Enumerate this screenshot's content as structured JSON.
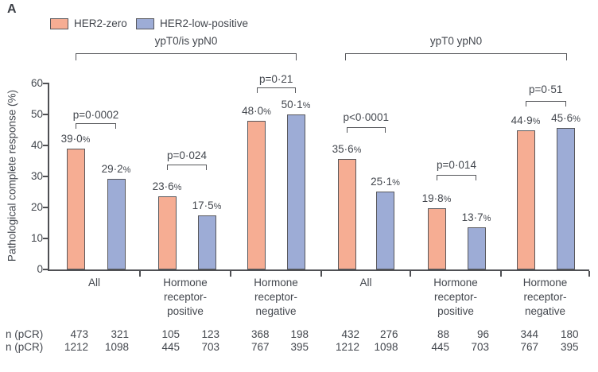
{
  "panel_label": "A",
  "chart_data": {
    "type": "bar",
    "title": "",
    "ylabel": "Pathological complete response (%)",
    "xlabel": "",
    "ylim": [
      0,
      60
    ],
    "yticks": [
      0,
      10,
      20,
      30,
      40,
      50,
      60
    ],
    "grid": false,
    "legend_position": "top-left",
    "legend": [
      {
        "name": "HER2-zero",
        "color": "#F6AD93"
      },
      {
        "name": "HER2-low-positive",
        "color": "#9DACD6"
      }
    ],
    "group_headers": [
      "ypT0/is ypN0",
      "ypT0 ypN0"
    ],
    "categories": [
      "All",
      "Hormone receptor-positive",
      "Hormone receptor-negative",
      "All",
      "Hormone receptor-positive",
      "Hormone receptor-negative"
    ],
    "category_lines": [
      [
        "All"
      ],
      [
        "Hormone",
        "receptor-",
        "positive"
      ],
      [
        "Hormone",
        "receptor-",
        "negative"
      ],
      [
        "All"
      ],
      [
        "Hormone",
        "receptor-",
        "positive"
      ],
      [
        "Hormone",
        "receptor-",
        "negative"
      ]
    ],
    "series": [
      {
        "name": "HER2-zero",
        "values": [
          39.0,
          23.6,
          48.0,
          35.6,
          19.8,
          44.9
        ],
        "labels": [
          "39·0%",
          "23·6%",
          "48·0%",
          "35·6%",
          "19·8%",
          "44·9%"
        ]
      },
      {
        "name": "HER2-low-positive",
        "values": [
          29.2,
          17.5,
          50.1,
          25.1,
          13.7,
          45.6
        ],
        "labels": [
          "29·2%",
          "17·5%",
          "50·1%",
          "25·1%",
          "13·7%",
          "45·6%"
        ]
      }
    ],
    "p_values": [
      "p=0·0002",
      "p=0·024",
      "p=0·21",
      "p<0·0001",
      "p=0·014",
      "p=0·51"
    ],
    "table": {
      "row_labels": [
        "n (pCR)",
        "n (pCR)"
      ],
      "rows": [
        [
          "473",
          "321",
          "105",
          "123",
          "368",
          "198",
          "432",
          "276",
          "88",
          "96",
          "344",
          "180"
        ],
        [
          "1212",
          "1098",
          "445",
          "703",
          "767",
          "395",
          "1212",
          "1098",
          "445",
          "703",
          "767",
          "395"
        ]
      ]
    },
    "colors": {
      "text": "#43474E",
      "axis": "#4F5054",
      "bar_border": "#58585C"
    }
  }
}
